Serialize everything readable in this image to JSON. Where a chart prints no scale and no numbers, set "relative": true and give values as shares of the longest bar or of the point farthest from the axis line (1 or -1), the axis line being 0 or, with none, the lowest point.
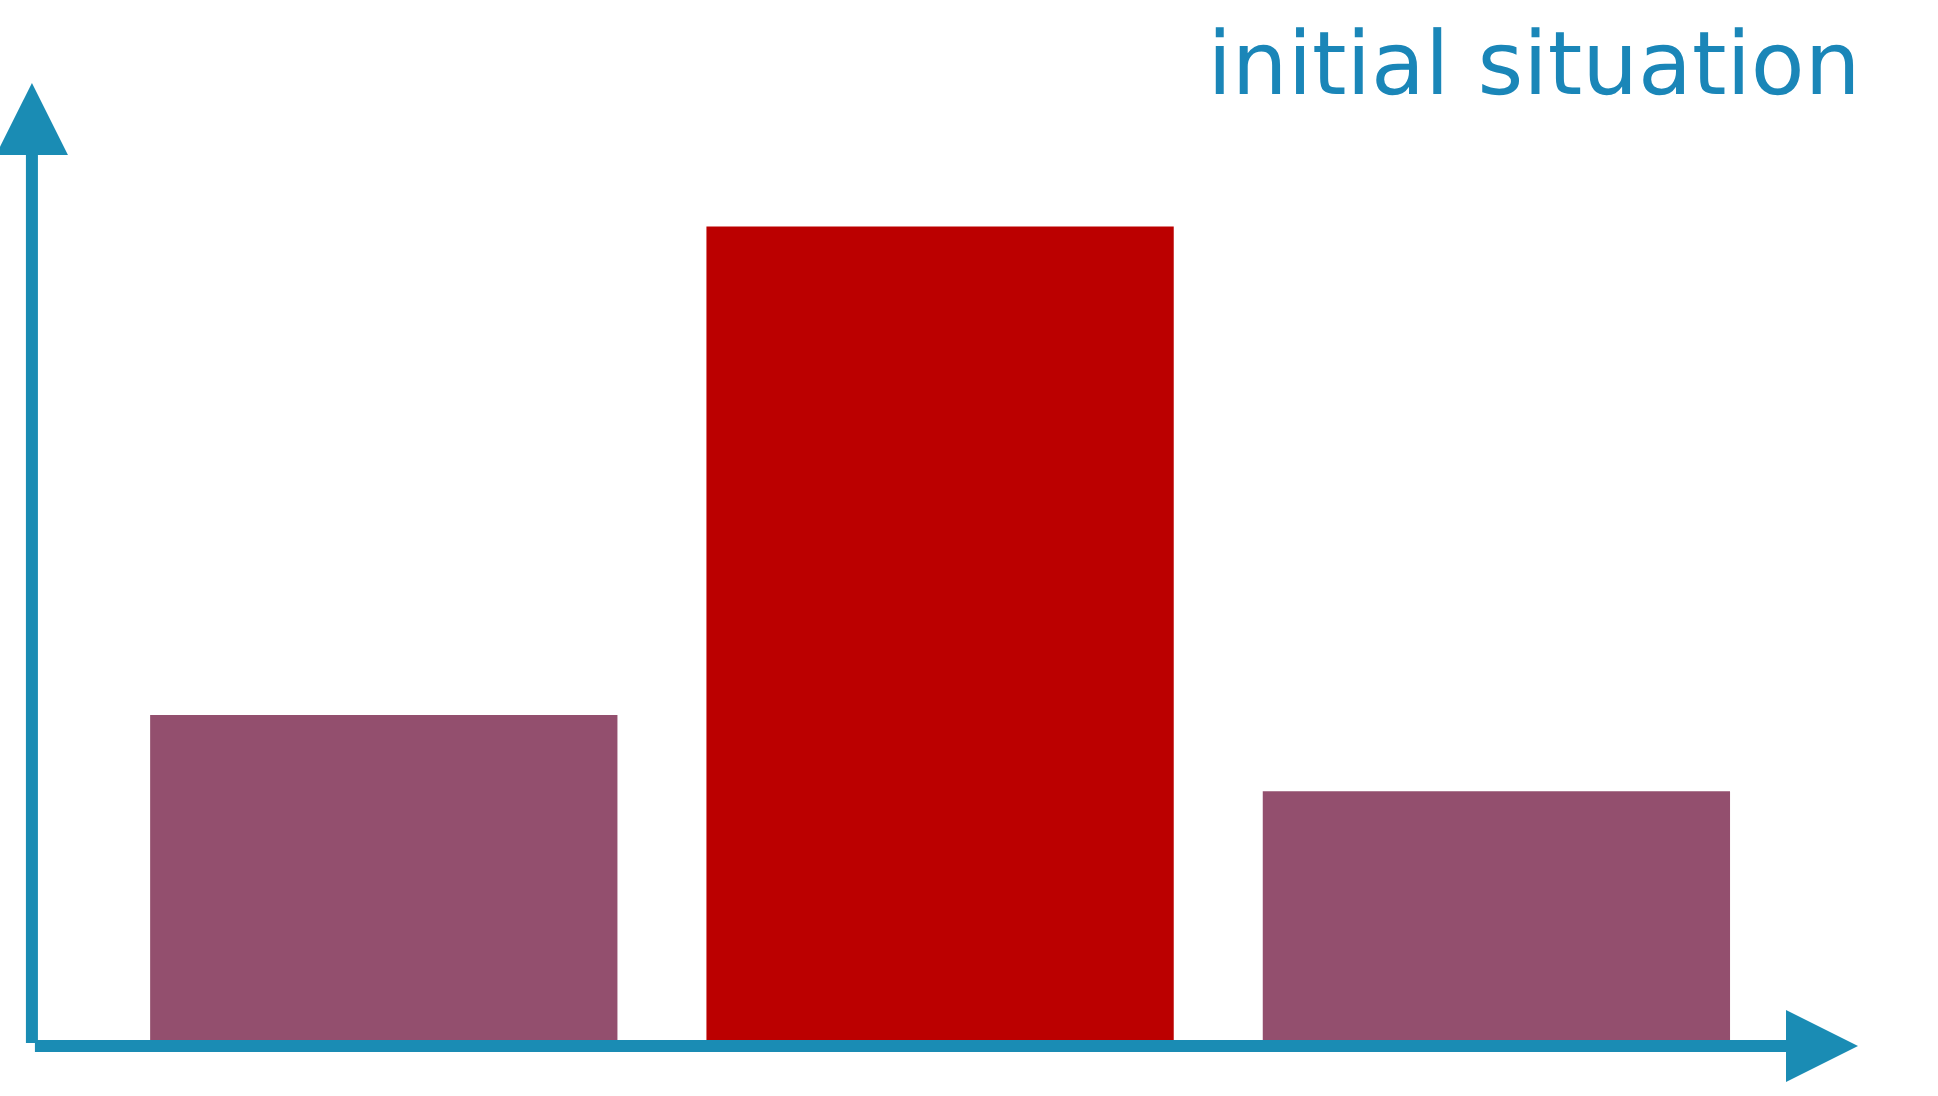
{
  "chart_data": {
    "type": "bar",
    "title": "initial situation",
    "relative": true,
    "categories": [
      null,
      null,
      null
    ],
    "values": [
      0.404,
      1,
      0.311
    ],
    "colors": [
      "#934f6e",
      "#bb0000",
      "#934f6e"
    ]
  }
}
